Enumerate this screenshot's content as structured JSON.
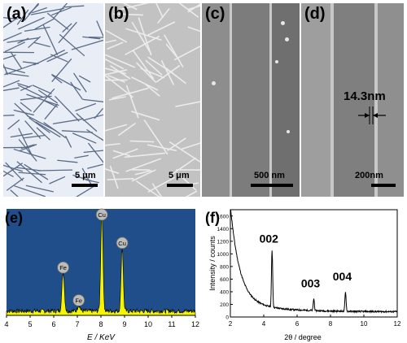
{
  "panels": {
    "a": {
      "label": "(a)",
      "scale_text": "5 μm"
    },
    "b": {
      "label": "(b)",
      "scale_text": "5 μm"
    },
    "c": {
      "label": "(c)",
      "scale_text": "500 nm"
    },
    "d": {
      "label": "(d)",
      "scale_text": "200nm",
      "thickness_text": "14.3nm"
    },
    "e": {
      "label": "(e)"
    },
    "f": {
      "label": "(f)"
    }
  },
  "colors": {
    "eds_bg": "#1f4e8a",
    "eds_fill": "#f5f500",
    "peak_marker": "#bcbcbc"
  },
  "chart_data": [
    {
      "type": "area",
      "panel": "(e)",
      "xlabel": "E / KeV",
      "xlim": [
        4,
        12
      ],
      "xticks": [
        4,
        5,
        6,
        7,
        8,
        9,
        10,
        11,
        12
      ],
      "peaks": [
        {
          "label": "Fe",
          "x": 6.4,
          "y": 0.38
        },
        {
          "label": "Fe",
          "x": 7.06,
          "y": 0.06
        },
        {
          "label": "Cu",
          "x": 8.04,
          "y": 1.0
        },
        {
          "label": "Cu",
          "x": 8.9,
          "y": 0.62
        }
      ]
    },
    {
      "type": "line",
      "panel": "(f)",
      "xlabel": "2θ / degree",
      "ylabel": "Intensity / counts",
      "xlim": [
        2,
        12
      ],
      "ylim": [
        0,
        1700
      ],
      "xticks": [
        2,
        4,
        6,
        8,
        10,
        12
      ],
      "yticks": [
        0,
        200,
        400,
        600,
        800,
        1000,
        1200,
        1400,
        1600
      ],
      "peaks": [
        {
          "label": "002",
          "x": 4.5,
          "y": 1000
        },
        {
          "label": "003",
          "x": 7.0,
          "y": 290
        },
        {
          "label": "004",
          "x": 8.9,
          "y": 400
        }
      ]
    }
  ]
}
